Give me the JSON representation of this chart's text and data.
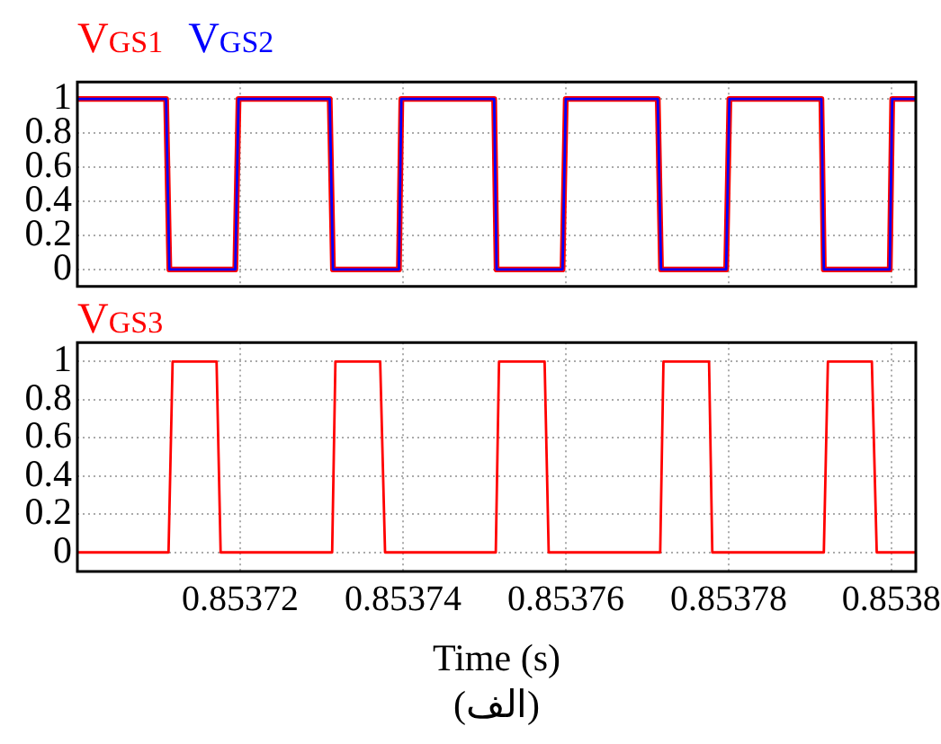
{
  "chart_data": [
    {
      "type": "line",
      "legend": "top left",
      "grid": true,
      "tick_labels": "y",
      "xlim": [
        0.8537,
        0.853803
      ],
      "xticks": [
        0.85372,
        0.85374,
        0.85376,
        0.85378,
        0.8538
      ],
      "ylim": [
        -0.1,
        1.1
      ],
      "yticks": [
        0,
        0.2,
        0.4,
        0.6,
        0.8,
        1
      ],
      "series": [
        {
          "name": "V$_{GS1}$",
          "color": "#ff0000",
          "x": [
            0.8537,
            0.8537109,
            0.8537113,
            0.8537194,
            0.8537198,
            0.853731,
            0.8537314,
            0.8537395,
            0.8537398,
            0.8537512,
            0.8537515,
            0.8537596,
            0.85376,
            0.8537713,
            0.8537717,
            0.8537797,
            0.8537801,
            0.8537914,
            0.8537917,
            0.8537998,
            0.8538001,
            0.853803
          ],
          "values": [
            1,
            1,
            0,
            0,
            1,
            1,
            0,
            0,
            1,
            1,
            0,
            0,
            1,
            1,
            0,
            0,
            1,
            1,
            0,
            0,
            1,
            1
          ]
        },
        {
          "name": "V$_{GS2}$",
          "color": "#0000ff",
          "x": [
            0.8537,
            0.8537109,
            0.8537113,
            0.8537194,
            0.8537198,
            0.853731,
            0.8537314,
            0.8537395,
            0.8537398,
            0.8537512,
            0.8537515,
            0.8537596,
            0.85376,
            0.8537713,
            0.8537717,
            0.8537797,
            0.8537801,
            0.8537914,
            0.8537917,
            0.8537998,
            0.8538001,
            0.853803
          ],
          "values": [
            1,
            1,
            0,
            0,
            1,
            1,
            0,
            0,
            1,
            1,
            0,
            0,
            1,
            1,
            0,
            0,
            1,
            1,
            0,
            0,
            1,
            1
          ]
        }
      ]
    },
    {
      "type": "line",
      "legend": "top left",
      "grid": true,
      "xlabel": "Time (s)",
      "annotations": [
        "(الف)"
      ],
      "xlim": [
        0.8537,
        0.853803
      ],
      "xticks": [
        0.85372,
        0.85374,
        0.85376,
        0.85378,
        0.8538
      ],
      "ylim": [
        -0.1,
        1.1
      ],
      "yticks": [
        0,
        0.2,
        0.4,
        0.6,
        0.8,
        1
      ],
      "series": [
        {
          "name": "V$_{GS3}$",
          "color": "#ff0000",
          "x": [
            0.8537,
            0.8537112,
            0.8537117,
            0.8537171,
            0.8537176,
            0.8537313,
            0.8537317,
            0.8537372,
            0.8537378,
            0.8537514,
            0.8537518,
            0.8537574,
            0.8537579,
            0.8537716,
            0.853772,
            0.8537776,
            0.853778,
            0.8537917,
            0.8537922,
            0.8537976,
            0.8537982,
            0.853803
          ],
          "values": [
            0,
            0,
            1,
            1,
            0,
            0,
            1,
            1,
            0,
            0,
            1,
            1,
            0,
            0,
            1,
            1,
            0,
            0,
            1,
            1,
            0,
            0
          ]
        }
      ]
    }
  ]
}
